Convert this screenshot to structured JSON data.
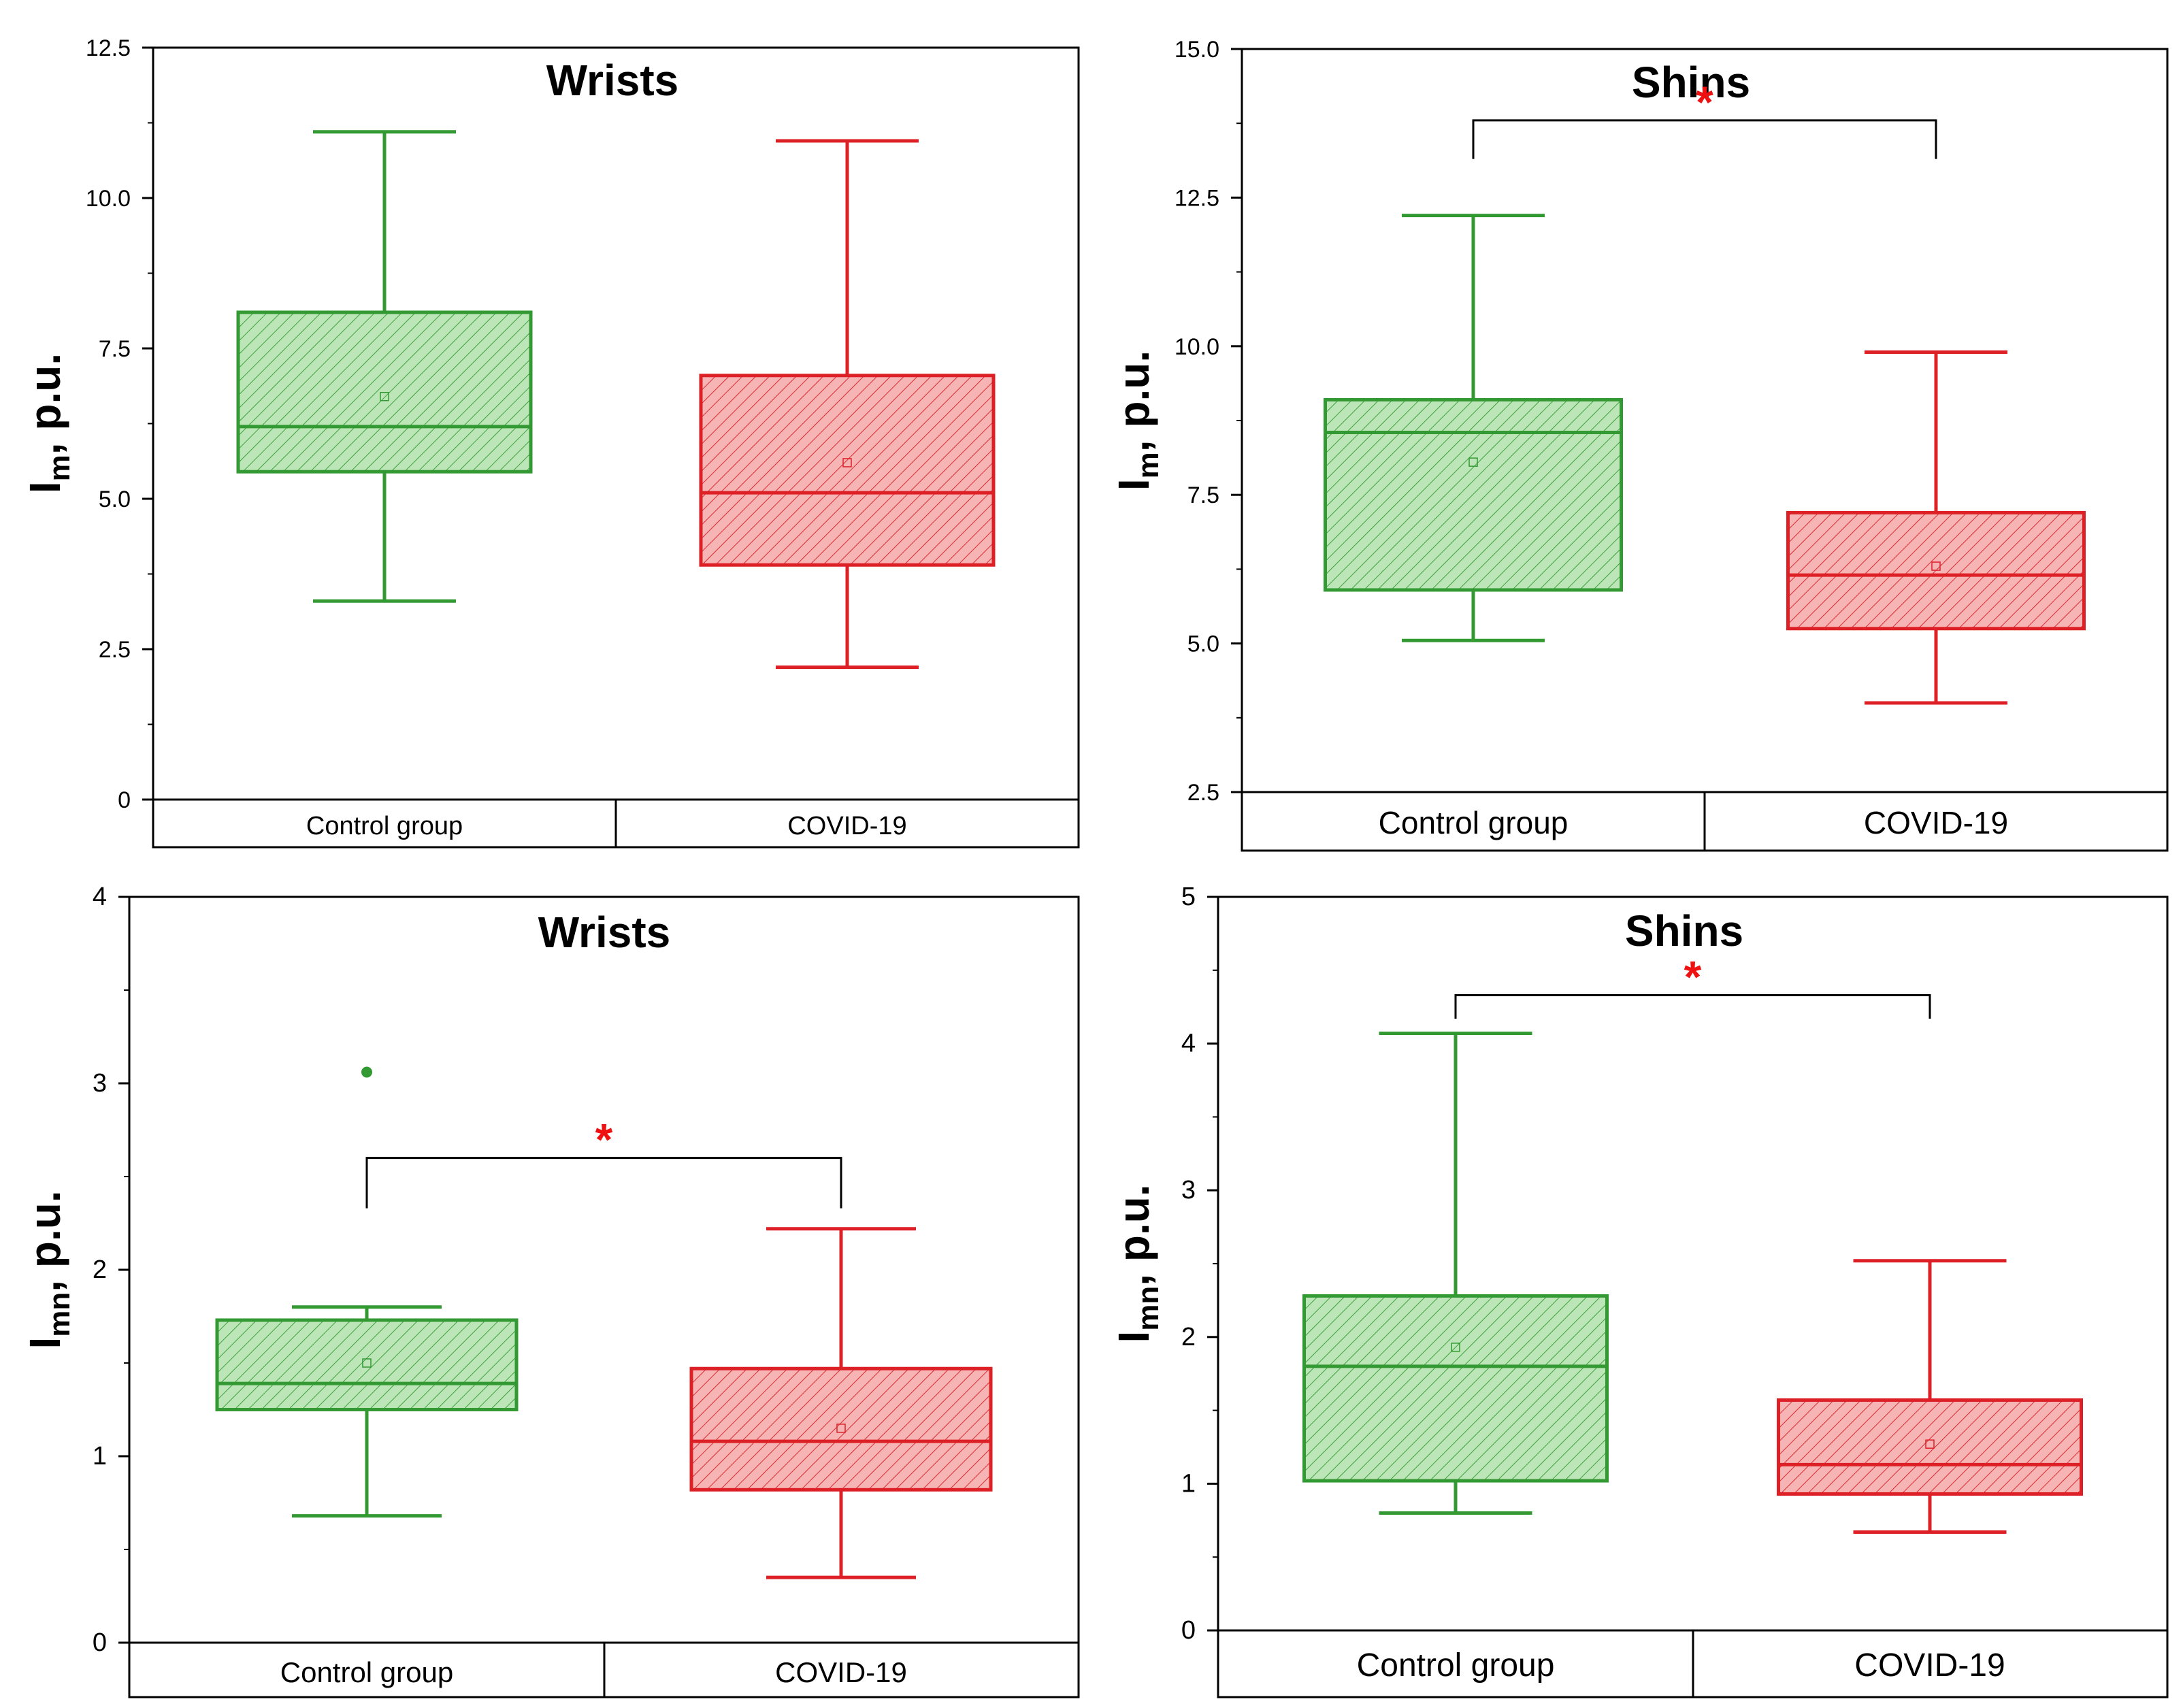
{
  "colors": {
    "control": "#339933",
    "control_fill": "#bde6b8",
    "covid": "#dd1f26",
    "covid_fill": "#f6b4b4",
    "star": "#ee1111",
    "axis": "#000000"
  },
  "chart_data": [
    {
      "id": "wrists_im",
      "type": "box",
      "title": "Wrists",
      "ylabel_main": "I",
      "ylabel_sub": "m",
      "ylabel_rest": ", p.u.",
      "ylim": [
        0,
        12.5
      ],
      "yticks": [
        0,
        2.5,
        5.0,
        7.5,
        10.0,
        12.5
      ],
      "ytick_labels": [
        "0",
        "2.5",
        "5.0",
        "7.5",
        "10.0",
        "12.5"
      ],
      "categories": [
        "Control group",
        "COVID-19"
      ],
      "series": [
        {
          "name": "Control group",
          "color_key": "control",
          "whisker_low": 3.3,
          "q1": 5.45,
          "median": 6.2,
          "q3": 8.1,
          "whisker_high": 11.1,
          "mean": 6.7,
          "outliers": []
        },
        {
          "name": "COVID-19",
          "color_key": "covid",
          "whisker_low": 2.2,
          "q1": 3.9,
          "median": 5.1,
          "q3": 7.05,
          "whisker_high": 10.95,
          "mean": 5.6,
          "outliers": []
        }
      ],
      "significance": null
    },
    {
      "id": "shins_im",
      "type": "box",
      "title": "Shins",
      "ylabel_main": "I",
      "ylabel_sub": "m",
      "ylabel_rest": ", p.u.",
      "ylim": [
        2.5,
        15.0
      ],
      "yticks": [
        2.5,
        5.0,
        7.5,
        10.0,
        12.5,
        15.0
      ],
      "ytick_labels": [
        "2.5",
        "5.0",
        "7.5",
        "10.0",
        "12.5",
        "15.0"
      ],
      "categories": [
        "Control group",
        "COVID-19"
      ],
      "series": [
        {
          "name": "Control group",
          "color_key": "control",
          "whisker_low": 5.05,
          "q1": 5.9,
          "median": 8.55,
          "q3": 9.1,
          "whisker_high": 12.2,
          "mean": 8.05,
          "outliers": []
        },
        {
          "name": "COVID-19",
          "color_key": "covid",
          "whisker_low": 4.0,
          "q1": 5.25,
          "median": 6.15,
          "q3": 7.2,
          "whisker_high": 9.9,
          "mean": 6.3,
          "outliers": []
        }
      ],
      "significance": {
        "label": "*",
        "bracket_y": 13.8,
        "drop_y": 13.15
      }
    },
    {
      "id": "wrists_imn",
      "type": "box",
      "title": "Wrists",
      "ylabel_main": "I",
      "ylabel_sub": "mn",
      "ylabel_rest": ", p.u.",
      "ylim": [
        0,
        4
      ],
      "yticks": [
        0,
        1,
        2,
        3,
        4
      ],
      "ytick_labels": [
        "0",
        "1",
        "2",
        "3",
        "4"
      ],
      "categories": [
        "Control group",
        "COVID-19"
      ],
      "series": [
        {
          "name": "Control group",
          "color_key": "control",
          "whisker_low": 0.68,
          "q1": 1.25,
          "median": 1.39,
          "q3": 1.73,
          "whisker_high": 1.8,
          "mean": 1.5,
          "outliers": [
            3.06
          ]
        },
        {
          "name": "COVID-19",
          "color_key": "covid",
          "whisker_low": 0.35,
          "q1": 0.82,
          "median": 1.08,
          "q3": 1.47,
          "whisker_high": 2.22,
          "mean": 1.15,
          "outliers": []
        }
      ],
      "significance": {
        "label": "*",
        "bracket_y": 2.6,
        "drop_y": 2.33
      }
    },
    {
      "id": "shins_imn",
      "type": "box",
      "title": "Shins",
      "ylabel_main": "I",
      "ylabel_sub": "mn",
      "ylabel_rest": ", p.u.",
      "ylim": [
        0,
        5
      ],
      "yticks": [
        0,
        1,
        2,
        3,
        4,
        5
      ],
      "ytick_labels": [
        "0",
        "1",
        "2",
        "3",
        "4",
        "5"
      ],
      "categories": [
        "Control group",
        "COVID-19"
      ],
      "series": [
        {
          "name": "Control group",
          "color_key": "control",
          "whisker_low": 0.8,
          "q1": 1.02,
          "median": 1.8,
          "q3": 2.28,
          "whisker_high": 4.07,
          "mean": 1.93,
          "outliers": []
        },
        {
          "name": "COVID-19",
          "color_key": "covid",
          "whisker_low": 0.67,
          "q1": 0.93,
          "median": 1.13,
          "q3": 1.57,
          "whisker_high": 2.52,
          "mean": 1.27,
          "outliers": []
        }
      ],
      "significance": {
        "label": "*",
        "bracket_y": 4.33,
        "drop_y": 4.17
      }
    }
  ]
}
